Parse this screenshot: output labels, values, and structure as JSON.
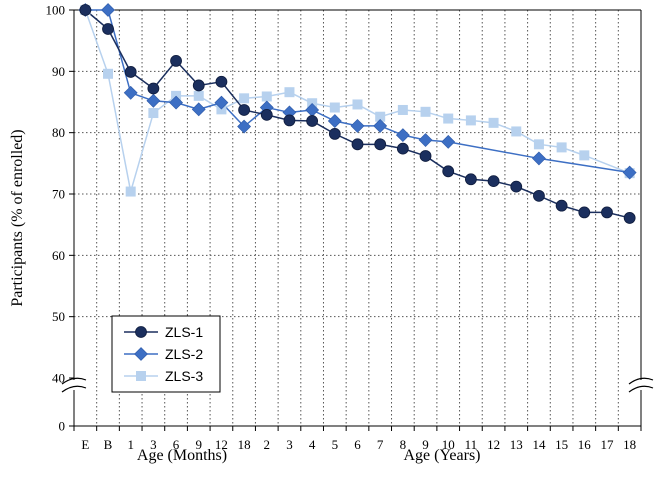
{
  "chart_data": {
    "type": "line",
    "ylabel": "Participants (% of enrolled)",
    "xlabel_groups": [
      "Age (Months)",
      "Age (Years)"
    ],
    "categories": [
      "E",
      "B",
      "1",
      "3",
      "6",
      "9",
      "12",
      "18",
      "2",
      "3",
      "4",
      "5",
      "6",
      "7",
      "8",
      "9",
      "10",
      "11",
      "12",
      "13",
      "14",
      "15",
      "16",
      "17",
      "18"
    ],
    "yticks": [
      "0",
      "40",
      "50",
      "60",
      "70",
      "80",
      "90",
      "100"
    ],
    "y_axis_break": [
      0,
      40
    ],
    "ylim": [
      40,
      100
    ],
    "grid": "dotted",
    "legend_position": "lower-left",
    "series": [
      {
        "name": "ZLS-1",
        "color": "#1b2f5e",
        "marker": "circle",
        "values": [
          100,
          96.9,
          89.9,
          87.2,
          91.7,
          87.7,
          88.3,
          83.7,
          82.9,
          82.0,
          81.9,
          79.8,
          78.1,
          78.1,
          77.4,
          76.2,
          73.7,
          72.4,
          72.1,
          71.2,
          69.7,
          68.1,
          67.0,
          67.0,
          66.1
        ]
      },
      {
        "name": "ZLS-2",
        "color": "#3d6fc4",
        "marker": "diamond",
        "values": [
          100,
          100,
          86.5,
          85.2,
          84.9,
          83.8,
          84.9,
          81.0,
          84.1,
          83.3,
          83.7,
          81.9,
          81.1,
          81.1,
          79.6,
          78.8,
          78.5,
          null,
          null,
          null,
          75.8,
          null,
          null,
          null,
          73.5
        ]
      },
      {
        "name": "ZLS-3",
        "color": "#b7d1ee",
        "marker": "square",
        "values": [
          100,
          89.6,
          70.4,
          83.2,
          86.0,
          86.0,
          83.8,
          85.6,
          85.9,
          86.6,
          84.8,
          84.1,
          84.6,
          82.6,
          83.7,
          83.4,
          82.3,
          82.0,
          81.6,
          80.2,
          78.1,
          77.6,
          76.3,
          null,
          73.4
        ]
      }
    ]
  }
}
